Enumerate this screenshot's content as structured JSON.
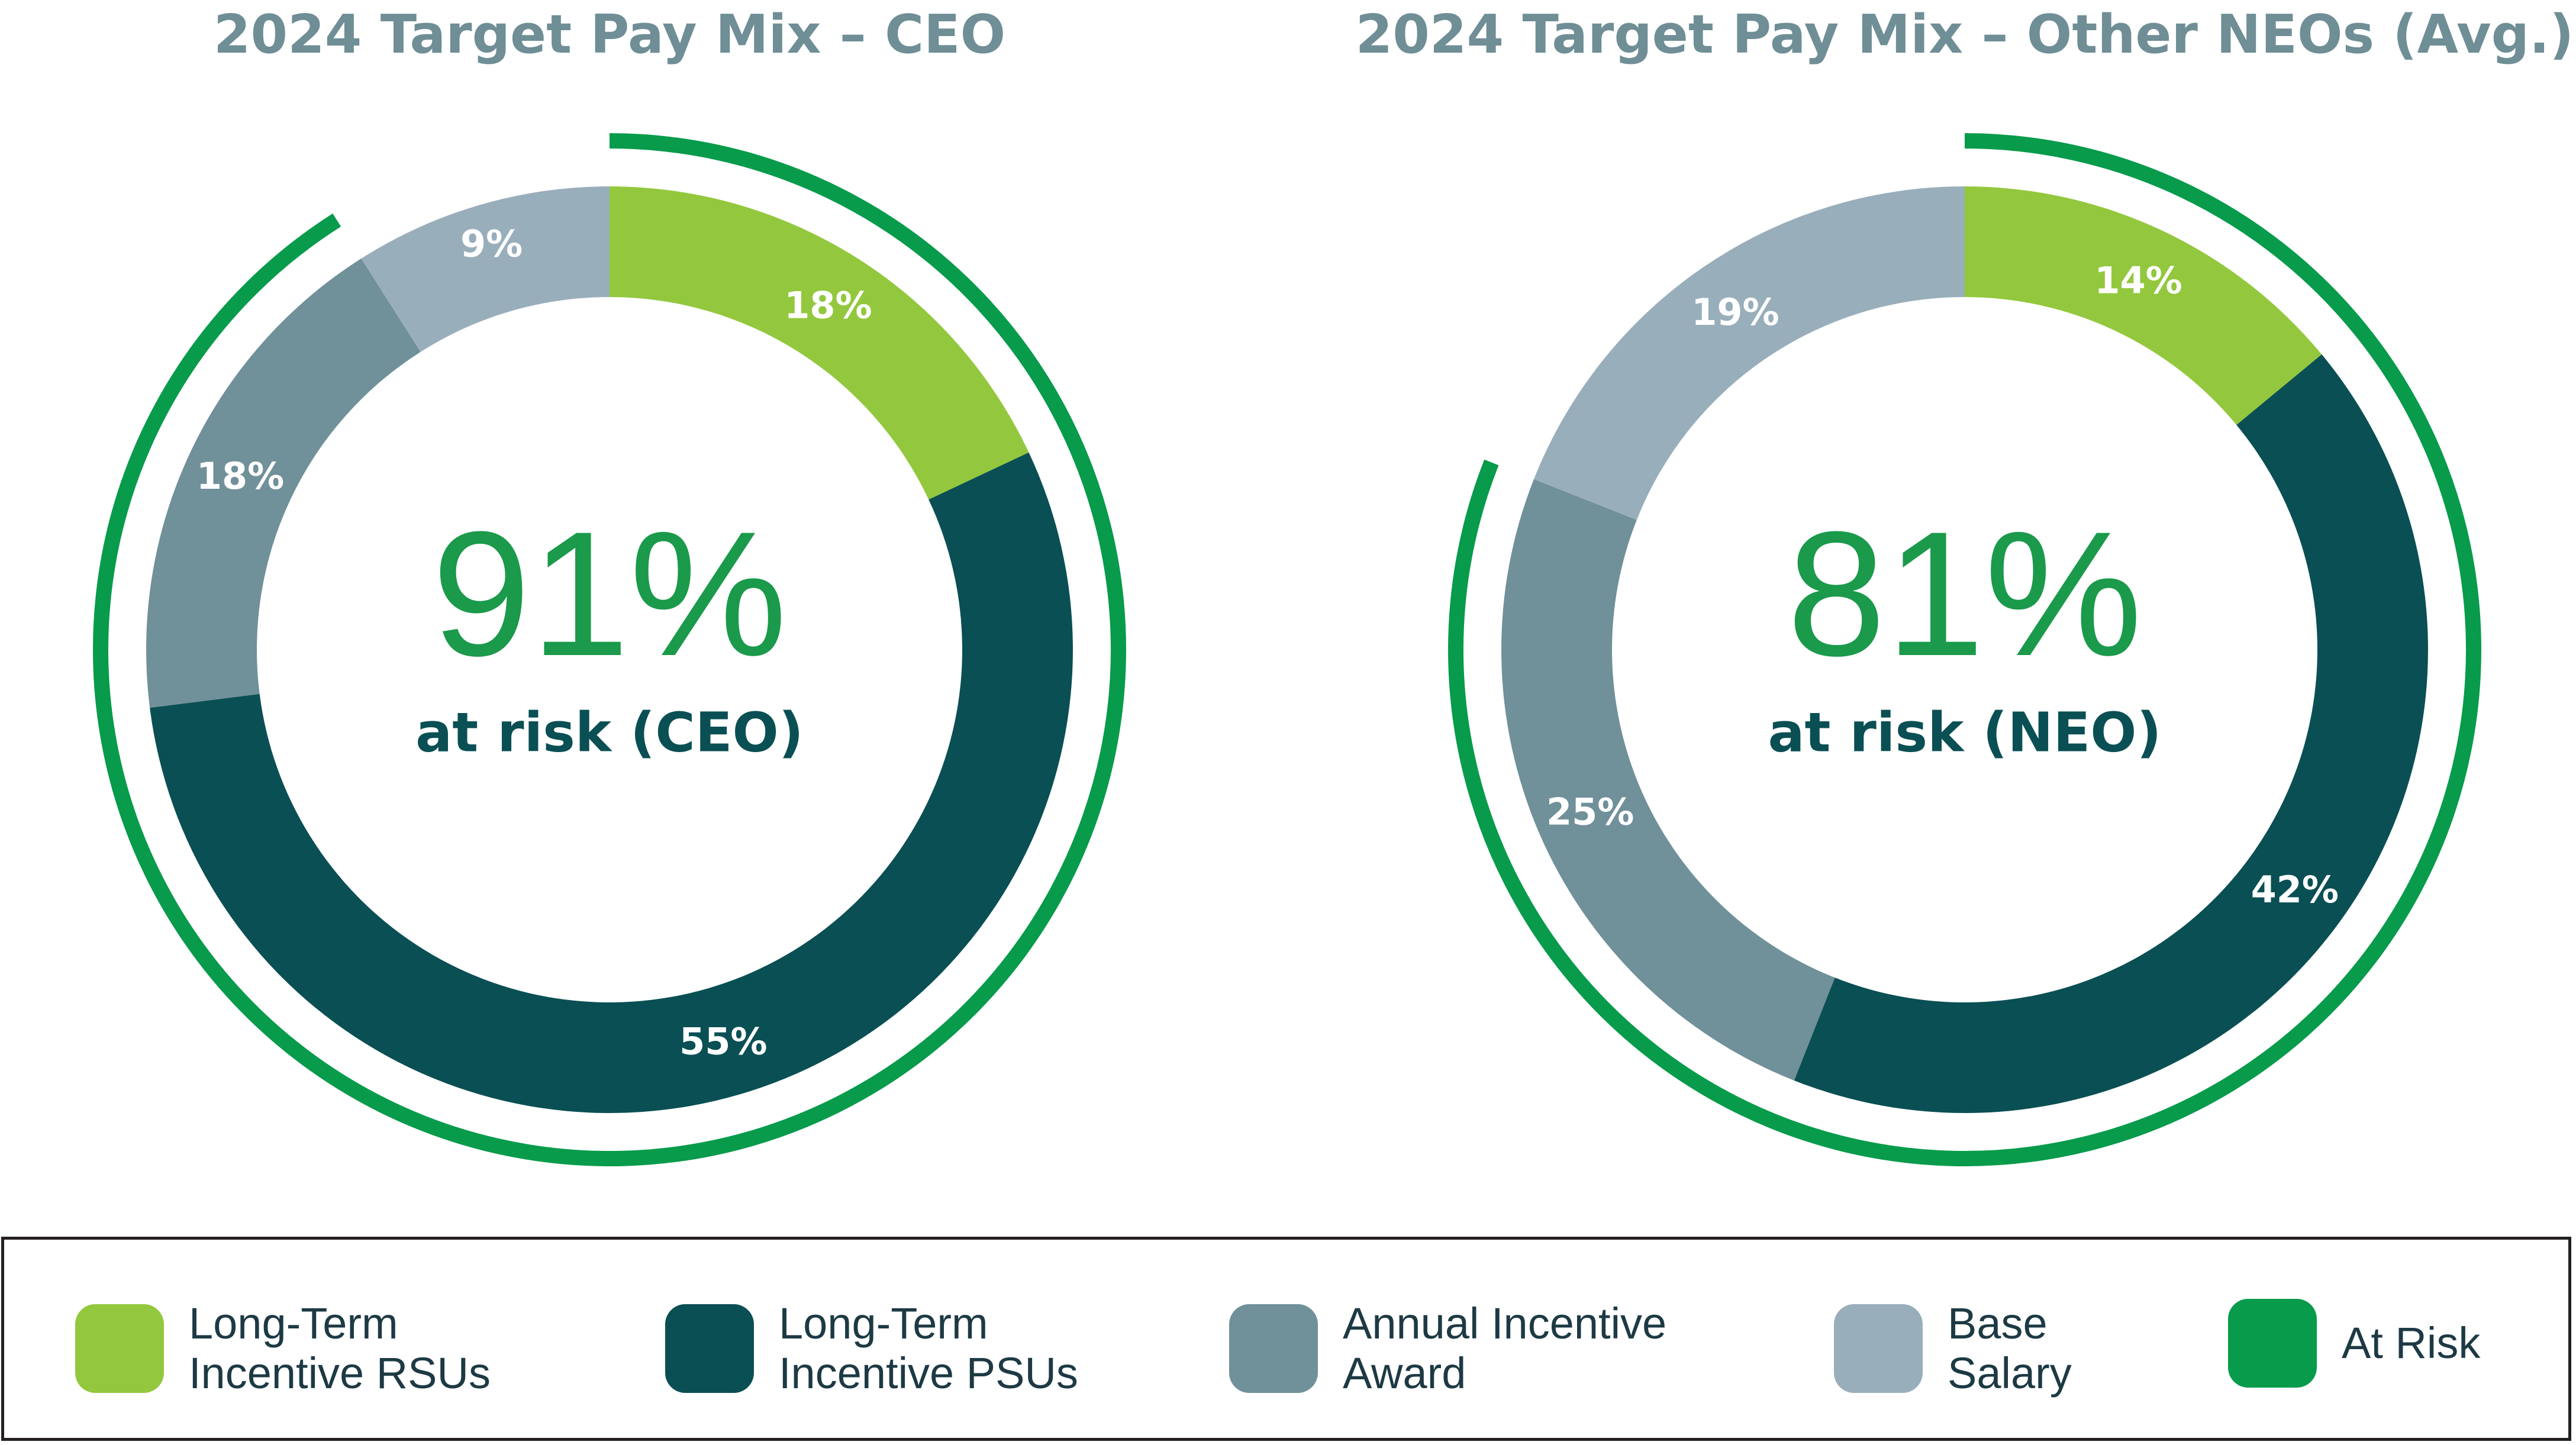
{
  "colors": {
    "rsu": "#93c83e",
    "psu": "#0a4f54",
    "aia": "#70909a",
    "base": "#99aebb",
    "atrisk": "#079b4b",
    "big_text": "#1a9a4a",
    "sub_text": "#0a4f54"
  },
  "chart_data": [
    {
      "type": "pie",
      "title": "2024 Target Pay Mix – CEO",
      "center_value": "91%",
      "center_label": "at risk (CEO)",
      "at_risk_percent": 91,
      "segments": [
        {
          "name": "Long-Term Incentive RSUs",
          "key": "rsu",
          "value": 18,
          "label": "18%"
        },
        {
          "name": "Long-Term Incentive PSUs",
          "key": "psu",
          "value": 55,
          "label": "55%"
        },
        {
          "name": "Annual Incentive Award",
          "key": "aia",
          "value": 18,
          "label": "18%"
        },
        {
          "name": "Base Salary",
          "key": "base",
          "value": 9,
          "label": "9%"
        }
      ]
    },
    {
      "type": "pie",
      "title": "2024 Target Pay Mix – Other NEOs (Avg.)",
      "center_value": "81%",
      "center_label": "at risk (NEO)",
      "at_risk_percent": 81,
      "segments": [
        {
          "name": "Long-Term Incentive RSUs",
          "key": "rsu",
          "value": 14,
          "label": "14%"
        },
        {
          "name": "Long-Term Incentive PSUs",
          "key": "psu",
          "value": 42,
          "label": "42%"
        },
        {
          "name": "Annual Incentive Award",
          "key": "aia",
          "value": 25,
          "label": "25%"
        },
        {
          "name": "Base Salary",
          "key": "base",
          "value": 19,
          "label": "19%"
        }
      ]
    }
  ],
  "legend": [
    {
      "key": "rsu",
      "label": "Long-Term\nIncentive RSUs"
    },
    {
      "key": "psu",
      "label": "Long-Term\nIncentive PSUs"
    },
    {
      "key": "aia",
      "label": "Annual Incentive\nAward"
    },
    {
      "key": "base",
      "label": "Base\nSalary"
    },
    {
      "key": "atrisk",
      "label": "At Risk"
    }
  ]
}
